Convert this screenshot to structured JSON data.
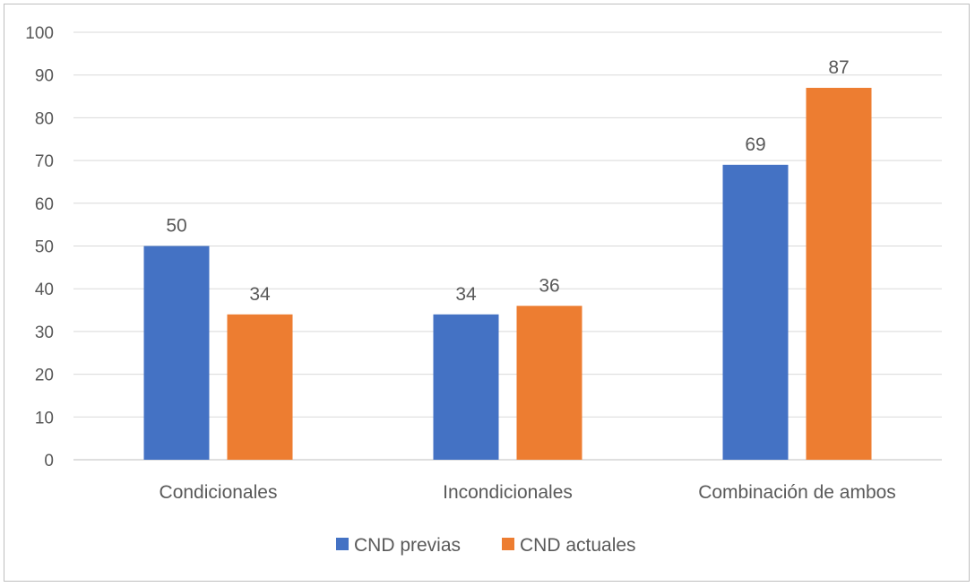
{
  "chart_data": {
    "type": "bar",
    "title": "",
    "xlabel": "",
    "ylabel": "",
    "categories": [
      "Condicionales",
      "Incondicionales",
      "Combinación de ambos"
    ],
    "series": [
      {
        "name": "CND previas",
        "values": [
          50,
          34,
          69
        ],
        "color": "#4472C4"
      },
      {
        "name": "CND actuales",
        "values": [
          34,
          36,
          87
        ],
        "color": "#ED7D31"
      }
    ],
    "ylim": [
      0,
      100
    ],
    "yticks": [
      0,
      10,
      20,
      30,
      40,
      50,
      60,
      70,
      80,
      90,
      100
    ],
    "grid": true,
    "gridColor": "#d9d9d9",
    "axisColor": "#bfbfbf",
    "data_labels": true,
    "legend_position": "bottom"
  }
}
